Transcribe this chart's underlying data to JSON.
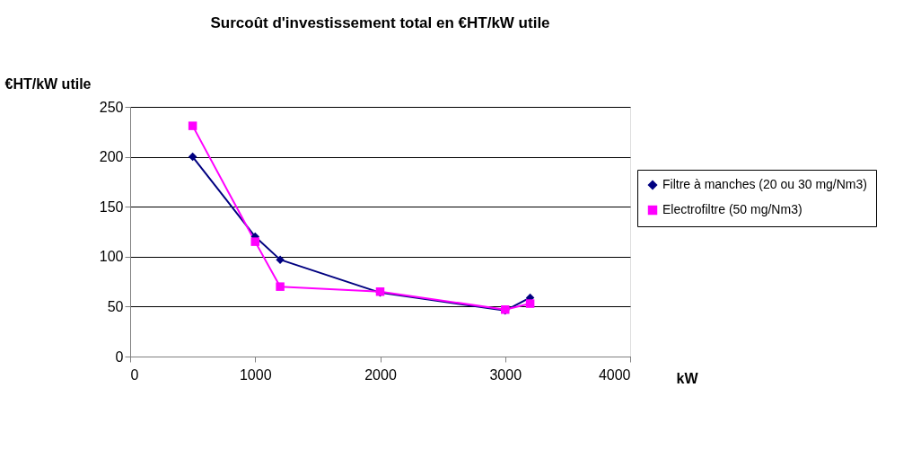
{
  "chart_data": {
    "type": "line",
    "title": "Surcoût d'investissement total en €HT/kW utile",
    "ylabel": "€HT/kW utile",
    "xlabel": "kW",
    "x": [
      500,
      1000,
      1200,
      2000,
      3000,
      3200
    ],
    "series": [
      {
        "name": "Filtre à manches (20 ou 30 mg/Nm3)",
        "color": "#000080",
        "marker": "diamond",
        "values": [
          200,
          120,
          97,
          64,
          46,
          59
        ]
      },
      {
        "name": "Electrofiltre (50 mg/Nm3)",
        "color": "#ff00ff",
        "marker": "square",
        "values": [
          231,
          115,
          70,
          65,
          47,
          53
        ]
      }
    ],
    "xlim": [
      0,
      4000
    ],
    "xticks": [
      0,
      1000,
      2000,
      3000,
      4000
    ],
    "ylim": [
      0,
      250
    ],
    "yticks": [
      0,
      50,
      100,
      150,
      200,
      250
    ],
    "grid": "y",
    "legend": "right",
    "line_style": "solid"
  }
}
